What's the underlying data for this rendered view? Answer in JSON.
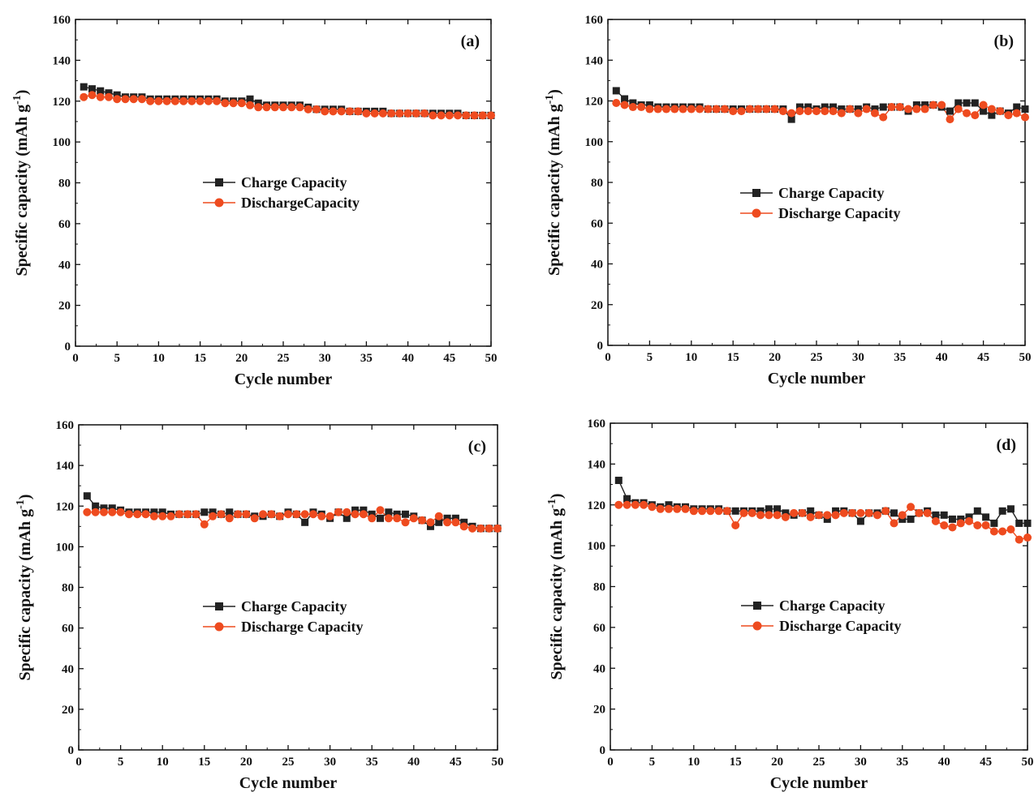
{
  "chart_data": [
    {
      "type": "line",
      "panel_label": "(a)",
      "xlabel": "Cycle number",
      "ylabel": "Specific capacity (mAh g",
      "ylabel_sup": "-1",
      "ylabel_end": ")",
      "xlim": [
        0,
        50
      ],
      "ylim": [
        0,
        160
      ],
      "xticks": [
        0,
        5,
        10,
        15,
        20,
        25,
        30,
        35,
        40,
        45,
        50
      ],
      "yticks": [
        0,
        20,
        40,
        60,
        80,
        100,
        120,
        140,
        160
      ],
      "grid": false,
      "legend_position": "center",
      "x": [
        1,
        2,
        3,
        4,
        5,
        6,
        7,
        8,
        9,
        10,
        11,
        12,
        13,
        14,
        15,
        16,
        17,
        18,
        19,
        20,
        21,
        22,
        23,
        24,
        25,
        26,
        27,
        28,
        29,
        30,
        31,
        32,
        33,
        34,
        35,
        36,
        37,
        38,
        39,
        40,
        41,
        42,
        43,
        44,
        45,
        46,
        47,
        48,
        49,
        50
      ],
      "series": [
        {
          "name": "Charge Capacity",
          "marker": "square",
          "color": "#222222",
          "values": [
            127,
            126,
            125,
            124,
            123,
            122,
            122,
            122,
            121,
            121,
            121,
            121,
            121,
            121,
            121,
            121,
            121,
            120,
            120,
            120,
            121,
            119,
            118,
            118,
            118,
            118,
            118,
            117,
            116,
            116,
            116,
            116,
            115,
            115,
            115,
            115,
            115,
            114,
            114,
            114,
            114,
            114,
            114,
            114,
            114,
            114,
            113,
            113,
            113,
            113
          ]
        },
        {
          "name": "DischargeCapacity",
          "marker": "circle",
          "color": "#ee4b1f",
          "values": [
            122,
            123,
            122,
            122,
            121,
            121,
            121,
            121,
            120,
            120,
            120,
            120,
            120,
            120,
            120,
            120,
            120,
            119,
            119,
            119,
            118,
            117,
            117,
            117,
            117,
            117,
            117,
            116,
            116,
            115,
            115,
            115,
            115,
            115,
            114,
            114,
            114,
            114,
            114,
            114,
            114,
            114,
            113,
            113,
            113,
            113,
            113,
            113,
            113,
            113
          ]
        }
      ]
    },
    {
      "type": "line",
      "panel_label": "(b)",
      "xlabel": "Cycle number",
      "ylabel": "Specific capacity (mAh g",
      "ylabel_sup": "-1",
      "ylabel_end": ")",
      "xlim": [
        0,
        50
      ],
      "ylim": [
        0,
        160
      ],
      "xticks": [
        0,
        5,
        10,
        15,
        20,
        25,
        30,
        35,
        40,
        45,
        50
      ],
      "yticks": [
        0,
        20,
        40,
        60,
        80,
        100,
        120,
        140,
        160
      ],
      "grid": false,
      "legend_position": "center",
      "x": [
        1,
        2,
        3,
        4,
        5,
        6,
        7,
        8,
        9,
        10,
        11,
        12,
        13,
        14,
        15,
        16,
        17,
        18,
        19,
        20,
        21,
        22,
        23,
        24,
        25,
        26,
        27,
        28,
        29,
        30,
        31,
        32,
        33,
        34,
        35,
        36,
        37,
        38,
        39,
        40,
        41,
        42,
        43,
        44,
        45,
        46,
        47,
        48,
        49,
        50
      ],
      "series": [
        {
          "name": "Charge Capacity",
          "marker": "square",
          "color": "#222222",
          "values": [
            125,
            121,
            119,
            118,
            118,
            117,
            117,
            117,
            117,
            117,
            117,
            116,
            116,
            116,
            116,
            116,
            116,
            116,
            116,
            116,
            116,
            111,
            117,
            117,
            116,
            117,
            117,
            116,
            116,
            116,
            117,
            116,
            117,
            117,
            117,
            115,
            118,
            118,
            118,
            117,
            115,
            119,
            119,
            119,
            115,
            113,
            115,
            114,
            117,
            116
          ]
        },
        {
          "name": "Discharge Capacity",
          "marker": "circle",
          "color": "#ee4b1f",
          "values": [
            119,
            118,
            117,
            117,
            116,
            116,
            116,
            116,
            116,
            116,
            116,
            116,
            116,
            116,
            115,
            115,
            116,
            116,
            116,
            116,
            115,
            114,
            115,
            115,
            115,
            115,
            115,
            114,
            116,
            114,
            116,
            114,
            112,
            117,
            117,
            116,
            116,
            116,
            118,
            118,
            111,
            116,
            114,
            113,
            118,
            116,
            115,
            113,
            114,
            112
          ]
        }
      ]
    },
    {
      "type": "line",
      "panel_label": "(c)",
      "xlabel": "Cycle number",
      "ylabel": "Specific capacity (mAh g",
      "ylabel_sup": "-1",
      "ylabel_end": ")",
      "xlim": [
        0,
        50
      ],
      "ylim": [
        0,
        160
      ],
      "xticks": [
        0,
        5,
        10,
        15,
        20,
        25,
        30,
        35,
        40,
        45,
        50
      ],
      "yticks": [
        0,
        20,
        40,
        60,
        80,
        100,
        120,
        140,
        160
      ],
      "grid": false,
      "legend_position": "center",
      "x": [
        1,
        2,
        3,
        4,
        5,
        6,
        7,
        8,
        9,
        10,
        11,
        12,
        13,
        14,
        15,
        16,
        17,
        18,
        19,
        20,
        21,
        22,
        23,
        24,
        25,
        26,
        27,
        28,
        29,
        30,
        31,
        32,
        33,
        34,
        35,
        36,
        37,
        38,
        39,
        40,
        41,
        42,
        43,
        44,
        45,
        46,
        47,
        48,
        49,
        50
      ],
      "series": [
        {
          "name": "Charge Capacity",
          "marker": "square",
          "color": "#222222",
          "values": [
            125,
            120,
            119,
            119,
            118,
            117,
            117,
            117,
            117,
            117,
            116,
            116,
            116,
            116,
            117,
            117,
            116,
            117,
            116,
            116,
            115,
            115,
            116,
            115,
            117,
            116,
            112,
            117,
            116,
            114,
            117,
            114,
            118,
            118,
            116,
            114,
            117,
            116,
            116,
            115,
            113,
            110,
            112,
            114,
            114,
            112,
            110,
            109,
            109,
            109
          ]
        },
        {
          "name": "Discharge Capacity",
          "marker": "circle",
          "color": "#ee4b1f",
          "values": [
            117,
            117,
            117,
            117,
            117,
            116,
            116,
            116,
            115,
            115,
            115,
            116,
            116,
            116,
            111,
            115,
            116,
            114,
            116,
            116,
            114,
            116,
            116,
            115,
            116,
            116,
            116,
            116,
            115,
            115,
            117,
            117,
            116,
            116,
            114,
            118,
            114,
            114,
            112,
            114,
            113,
            112,
            115,
            112,
            112,
            110,
            109,
            109,
            109,
            109
          ]
        }
      ]
    },
    {
      "type": "line",
      "panel_label": "(d)",
      "xlabel": "Cycle number",
      "ylabel": "Specific capacity (mAh g",
      "ylabel_sup": "-1",
      "ylabel_end": ")",
      "xlim": [
        0,
        50
      ],
      "ylim": [
        0,
        160
      ],
      "xticks": [
        0,
        5,
        10,
        15,
        20,
        25,
        30,
        35,
        40,
        45,
        50
      ],
      "yticks": [
        0,
        20,
        40,
        60,
        80,
        100,
        120,
        140,
        160
      ],
      "grid": false,
      "legend_position": "center",
      "x": [
        1,
        2,
        3,
        4,
        5,
        6,
        7,
        8,
        9,
        10,
        11,
        12,
        13,
        14,
        15,
        16,
        17,
        18,
        19,
        20,
        21,
        22,
        23,
        24,
        25,
        26,
        27,
        28,
        29,
        30,
        31,
        32,
        33,
        34,
        35,
        36,
        37,
        38,
        39,
        40,
        41,
        42,
        43,
        44,
        45,
        46,
        47,
        48,
        49,
        50
      ],
      "series": [
        {
          "name": "Charge Capacity",
          "marker": "square",
          "color": "#222222",
          "values": [
            132,
            123,
            121,
            121,
            120,
            119,
            120,
            119,
            119,
            118,
            118,
            118,
            118,
            117,
            117,
            117,
            117,
            117,
            118,
            118,
            116,
            115,
            116,
            117,
            115,
            113,
            117,
            117,
            116,
            112,
            116,
            116,
            117,
            116,
            113,
            113,
            116,
            117,
            115,
            115,
            113,
            113,
            114,
            117,
            114,
            111,
            117,
            118,
            111,
            111
          ]
        },
        {
          "name": "Discharge Capacity",
          "marker": "circle",
          "color": "#ee4b1f",
          "values": [
            120,
            120,
            120,
            120,
            119,
            118,
            118,
            118,
            118,
            117,
            117,
            117,
            117,
            117,
            110,
            116,
            116,
            115,
            115,
            115,
            114,
            116,
            116,
            114,
            115,
            115,
            115,
            116,
            116,
            116,
            116,
            115,
            117,
            111,
            115,
            119,
            116,
            116,
            112,
            110,
            109,
            111,
            112,
            110,
            110,
            107,
            107,
            108,
            103,
            104
          ]
        }
      ]
    }
  ]
}
